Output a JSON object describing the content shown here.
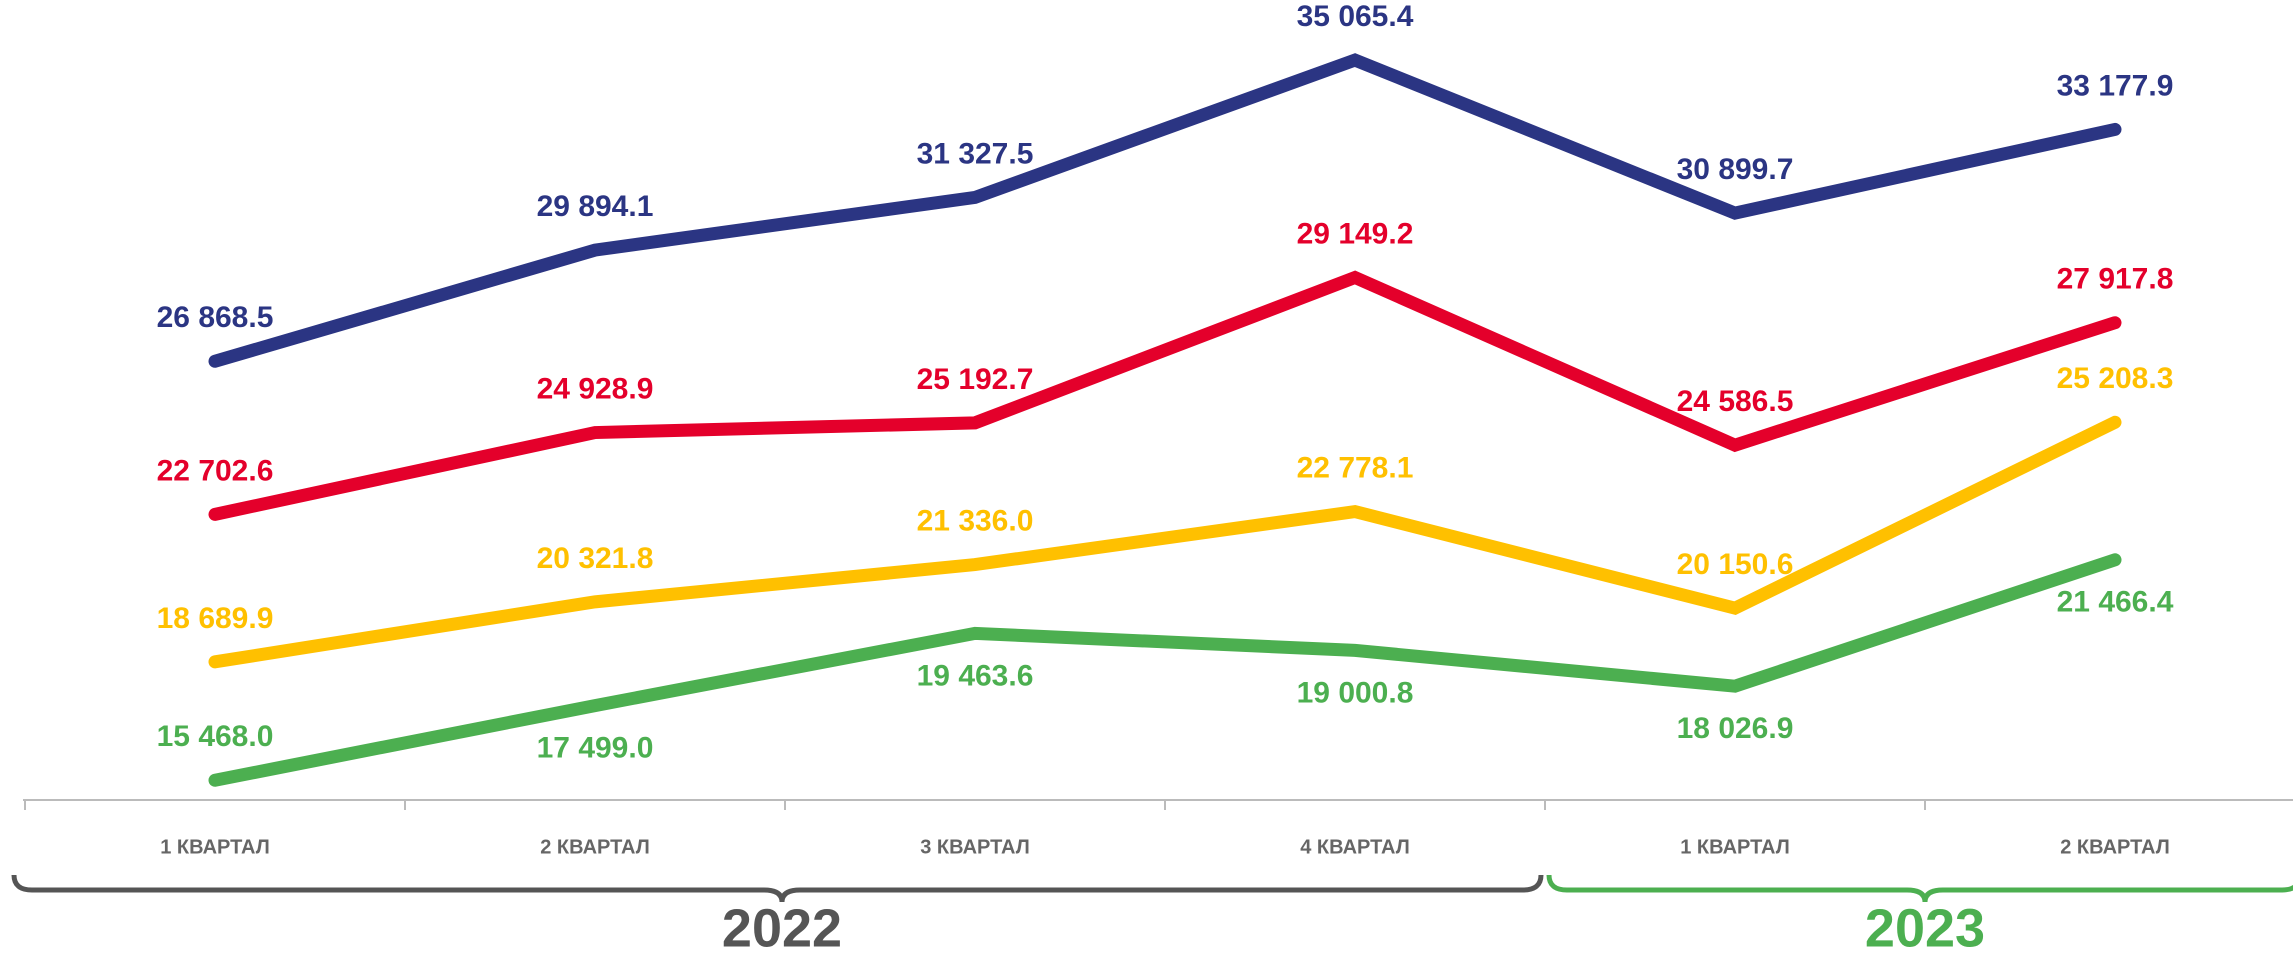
{
  "chart_data": {
    "type": "line",
    "categories": [
      "1 КВАРТАЛ",
      "2 КВАРТАЛ",
      "3 КВАРТАЛ",
      "4 КВАРТАЛ",
      "1 КВАРТАЛ",
      "2 КВАРТАЛ"
    ],
    "groups": [
      "2022",
      "2023"
    ],
    "group_colors": [
      "#555555",
      "#4caf50"
    ],
    "ylim": [
      14930,
      36700
    ],
    "series": [
      {
        "color": "#2b3583",
        "values": [
          26868.5,
          29894.1,
          31327.5,
          35065.4,
          30899.7,
          33177.9
        ],
        "value_labels": [
          "26 868.5",
          "29 894.1",
          "31 327.5",
          "35 065.4",
          "30 899.7",
          "33 177.9"
        ]
      },
      {
        "color": "#e4002b",
        "values": [
          22702.6,
          24928.9,
          25192.7,
          29149.2,
          24586.5,
          27917.8
        ],
        "value_labels": [
          "22 702.6",
          "24 928.9",
          "25 192.7",
          "29 149.2",
          "24 586.5",
          "27 917.8"
        ]
      },
      {
        "color": "#ffc000",
        "values": [
          18689.9,
          20321.8,
          21336.0,
          22778.1,
          20150.6,
          25208.3
        ],
        "value_labels": [
          "18 689.9",
          "20 321.8",
          "21 336.0",
          "22 778.1",
          "20 150.6",
          "25 208.3"
        ]
      },
      {
        "color": "#4caf50",
        "values": [
          15468.0,
          17499.0,
          19463.6,
          19000.8,
          18026.9,
          21466.4
        ],
        "value_labels": [
          "15 468.0",
          "17 499.0",
          "19 463.6",
          "19 000.8",
          "18 026.9",
          "21 466.4"
        ]
      }
    ]
  }
}
